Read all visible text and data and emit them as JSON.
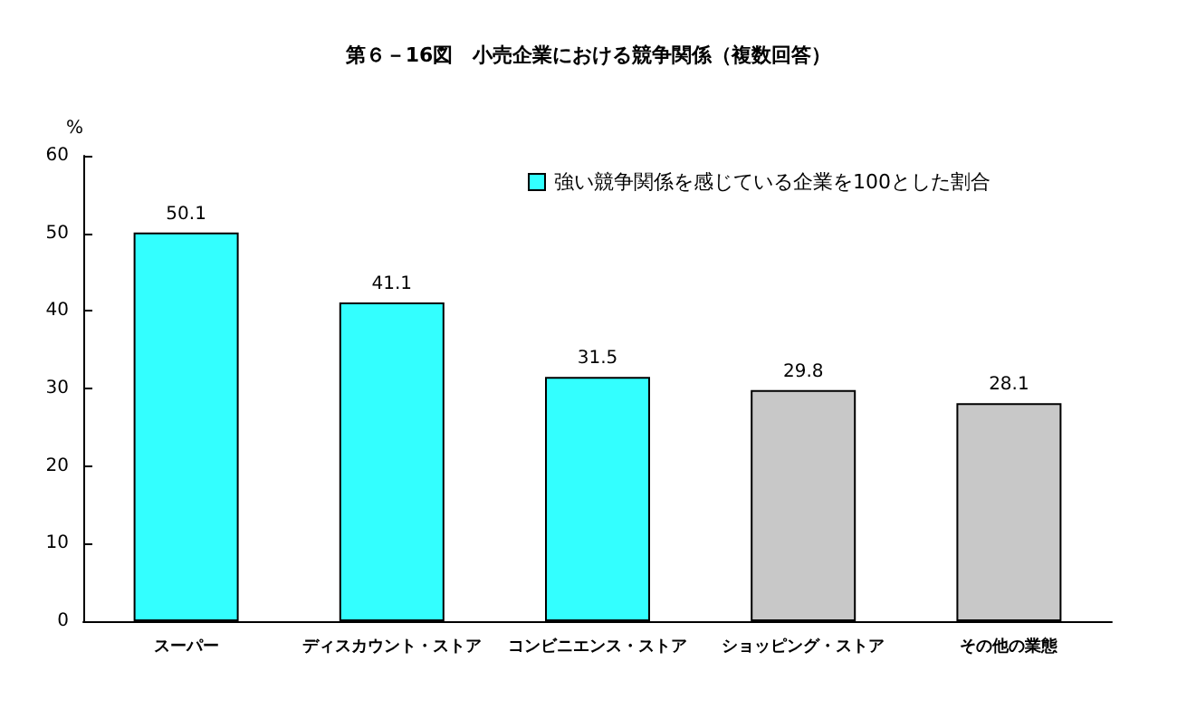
{
  "chart_data": {
    "type": "bar",
    "title": "第６－16図　小売企業における競争関係（複数回答）",
    "ylabel": "%",
    "categories": [
      "スーパー",
      "ディスカウント・ストア",
      "コンビニエンス・ストア",
      "ショッピング・ストア",
      "その他の業態"
    ],
    "series": [
      {
        "name": "強い競争関係を感じている企業を100とした割合",
        "color": "#33ffff",
        "colors": [
          "#33ffff",
          "#33ffff",
          "#33ffff",
          "#c8c8c8",
          "#c8c8c8"
        ],
        "values": [
          50.1,
          41.1,
          31.5,
          29.8,
          28.1
        ]
      }
    ],
    "ylim": [
      0,
      60
    ],
    "yticks": [
      0,
      10,
      20,
      30,
      40,
      50,
      60
    ],
    "data_labels": true,
    "legend": "top right",
    "grid": false
  }
}
